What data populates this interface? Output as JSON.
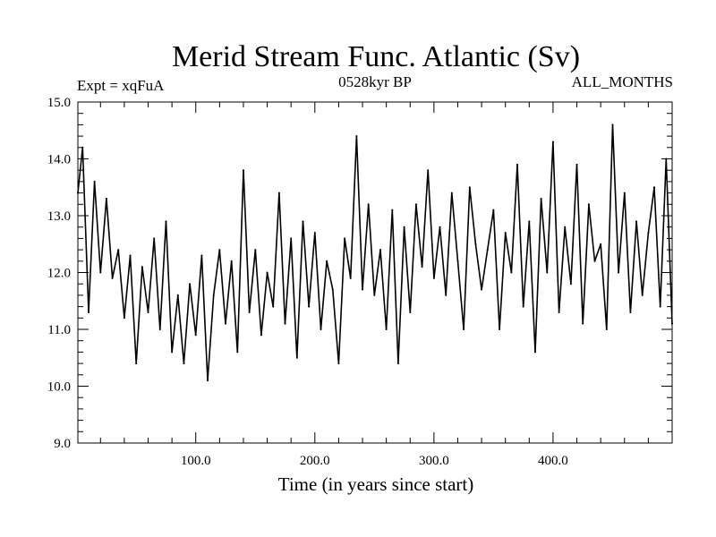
{
  "chart_data": {
    "type": "line",
    "title": "Merid Stream Func. Atlantic (Sv)",
    "subtitle_left": "Expt = xqFuA",
    "subtitle_center": "0528kyr BP",
    "subtitle_right": "ALL_MONTHS",
    "xlabel": "Time (in years since start)",
    "ylabel": "",
    "xlim": [
      1,
      500
    ],
    "ylim": [
      9.0,
      15.0
    ],
    "xticks": [
      100,
      200,
      300,
      400
    ],
    "xtick_labels": [
      "100.0",
      "200.0",
      "300.0",
      "400.0"
    ],
    "yticks": [
      9,
      10,
      11,
      12,
      13,
      14,
      15
    ],
    "ytick_labels": [
      "9.0",
      "10.0",
      "11.0",
      "12.0",
      "13.0",
      "14.0",
      "15.0"
    ],
    "grid": false,
    "series": [
      {
        "name": "Merid Stream Func. Atlantic",
        "color": "#000000",
        "x": [
          1,
          5,
          10,
          15,
          20,
          25,
          30,
          35,
          40,
          45,
          50,
          55,
          60,
          65,
          70,
          75,
          80,
          85,
          90,
          95,
          100,
          105,
          110,
          115,
          120,
          125,
          130,
          135,
          140,
          145,
          150,
          155,
          160,
          165,
          170,
          175,
          180,
          185,
          190,
          195,
          200,
          205,
          210,
          215,
          220,
          225,
          230,
          235,
          240,
          245,
          250,
          255,
          260,
          265,
          270,
          275,
          280,
          285,
          290,
          295,
          300,
          305,
          310,
          315,
          320,
          325,
          330,
          335,
          340,
          345,
          350,
          355,
          360,
          365,
          370,
          375,
          380,
          385,
          390,
          395,
          400,
          405,
          410,
          415,
          420,
          425,
          430,
          435,
          440,
          445,
          450,
          455,
          460,
          465,
          470,
          475,
          480,
          485,
          490,
          495,
          500
        ],
        "values": [
          13.4,
          14.2,
          11.3,
          13.6,
          12.0,
          13.3,
          11.9,
          12.4,
          11.2,
          12.3,
          10.4,
          12.1,
          11.3,
          12.6,
          11.0,
          12.9,
          10.6,
          11.6,
          10.4,
          11.8,
          10.9,
          12.3,
          10.1,
          11.6,
          12.4,
          11.1,
          12.2,
          10.6,
          13.8,
          11.3,
          12.4,
          10.9,
          12.0,
          11.4,
          13.4,
          11.1,
          12.6,
          10.5,
          12.9,
          11.4,
          12.7,
          11.0,
          12.2,
          11.7,
          10.4,
          12.6,
          11.9,
          14.4,
          11.7,
          13.2,
          11.6,
          12.4,
          11.0,
          13.1,
          10.4,
          12.8,
          11.3,
          13.2,
          12.1,
          13.8,
          11.9,
          12.8,
          11.6,
          13.4,
          12.2,
          11.0,
          13.5,
          12.5,
          11.7,
          12.4,
          13.1,
          11.0,
          12.7,
          12.0,
          13.9,
          11.4,
          12.9,
          10.6,
          13.3,
          12.0,
          14.3,
          11.3,
          12.8,
          11.8,
          13.9,
          11.1,
          13.2,
          12.2,
          12.5,
          11.0,
          14.6,
          12.0,
          13.4,
          11.3,
          12.9,
          11.6,
          12.7,
          13.5,
          11.4,
          14.0,
          11.1
        ]
      }
    ]
  }
}
